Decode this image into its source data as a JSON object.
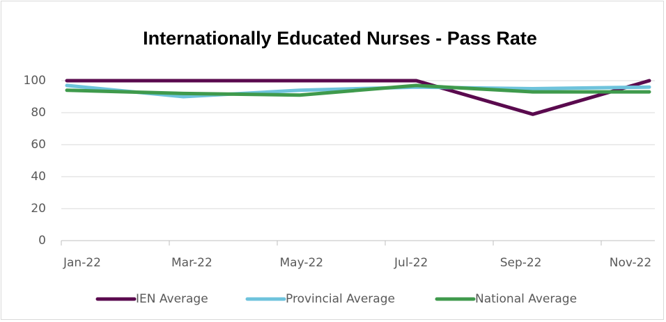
{
  "chart_data": {
    "type": "line",
    "title": "Internationally Educated Nurses - Pass Rate",
    "categories": [
      "Jan-22",
      "Mar-22",
      "May-22",
      "Jul-22",
      "Sep-22",
      "Nov-22"
    ],
    "series": [
      {
        "name": "IEN Average",
        "color": "#5a0a4e",
        "values": [
          100,
          100,
          100,
          100,
          79,
          100
        ]
      },
      {
        "name": "Provincial Average",
        "color": "#6ec3dc",
        "values": [
          97,
          90,
          94,
          96,
          95,
          96
        ]
      },
      {
        "name": "National Average",
        "color": "#3f9a4c",
        "values": [
          94,
          92,
          91,
          97,
          93,
          93
        ]
      }
    ],
    "ylim": [
      0,
      100
    ],
    "yticks": [
      0,
      20,
      40,
      60,
      80,
      100
    ],
    "grid": true,
    "legend": "bottom"
  }
}
